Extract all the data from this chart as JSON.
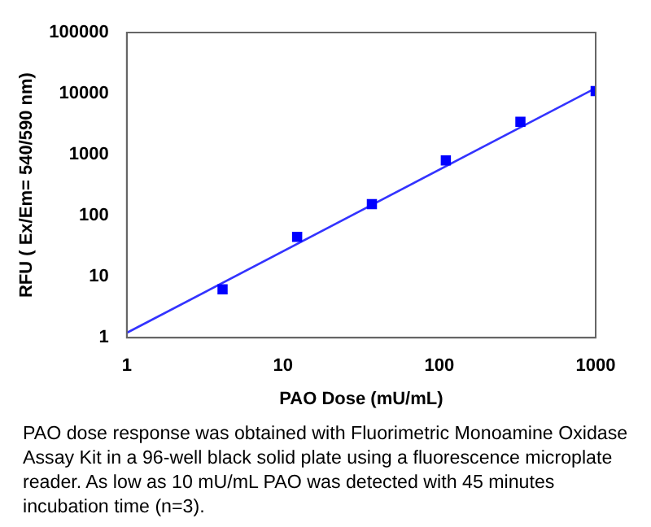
{
  "chart_data": {
    "type": "scatter",
    "xlabel": "PAO Dose (mU/mL)",
    "ylabel": "RFU ( Ex/Em= 540/590 nm)",
    "log": "xy",
    "xlim": [
      1,
      1000
    ],
    "xticks": [
      1,
      10,
      100,
      1000
    ],
    "ylim": [
      1,
      100000
    ],
    "yticks": [
      1,
      10,
      100,
      1000,
      10000,
      100000
    ],
    "grid": false,
    "legend": false,
    "marker": "square",
    "series": [
      {
        "type": "scatter",
        "color": "#0000ff",
        "x": [
          4.1,
          12.3,
          37,
          110,
          330,
          1000
        ],
        "values": [
          6.2,
          45,
          154,
          800,
          3450,
          11000
        ]
      },
      {
        "type": "line",
        "color": "#3333ff",
        "marker": "none",
        "x": [
          1,
          1000
        ],
        "values": [
          1.2,
          12300
        ]
      }
    ],
    "annotations": [
      "PAO dose response was obtained with Fluorimetric Monoamine Oxidase Assay Kit in a 96-well black solid plate using a fluorescence microplate reader. As low as 10 mU/mL PAO was detected with 45 minutes incubation time (n=3)."
    ]
  }
}
